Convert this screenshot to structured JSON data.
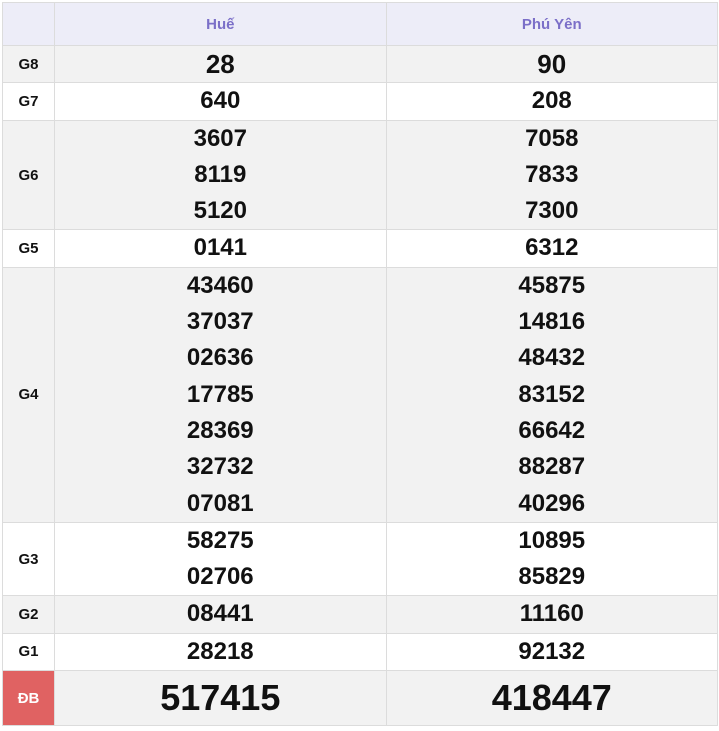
{
  "header": {
    "provinces": [
      "Huế",
      "Phú Yên"
    ]
  },
  "rows": [
    {
      "label": "G8",
      "cols": [
        [
          "28"
        ],
        [
          "90"
        ]
      ],
      "highlight": true
    },
    {
      "label": "G7",
      "cols": [
        [
          "640"
        ],
        [
          "208"
        ]
      ]
    },
    {
      "label": "G6",
      "cols": [
        [
          "3607",
          "8119",
          "5120"
        ],
        [
          "7058",
          "7833",
          "7300"
        ]
      ]
    },
    {
      "label": "G5",
      "cols": [
        [
          "0141"
        ],
        [
          "6312"
        ]
      ]
    },
    {
      "label": "G4",
      "cols": [
        [
          "43460",
          "37037",
          "02636",
          "17785",
          "28369",
          "32732",
          "07081"
        ],
        [
          "45875",
          "14816",
          "48432",
          "83152",
          "66642",
          "88287",
          "40296"
        ]
      ]
    },
    {
      "label": "G3",
      "cols": [
        [
          "58275",
          "02706"
        ],
        [
          "10895",
          "85829"
        ]
      ]
    },
    {
      "label": "G2",
      "cols": [
        [
          "08441"
        ],
        [
          "11160"
        ]
      ]
    },
    {
      "label": "G1",
      "cols": [
        [
          "28218"
        ],
        [
          "92132"
        ]
      ]
    },
    {
      "label": "ĐB",
      "cols": [
        [
          "517415"
        ],
        [
          "418447"
        ]
      ],
      "highlight": true
    }
  ],
  "colors": {
    "accent_red": "#d0302a",
    "header_text": "#7b6fc8",
    "db_label_bg": "#e06262"
  }
}
